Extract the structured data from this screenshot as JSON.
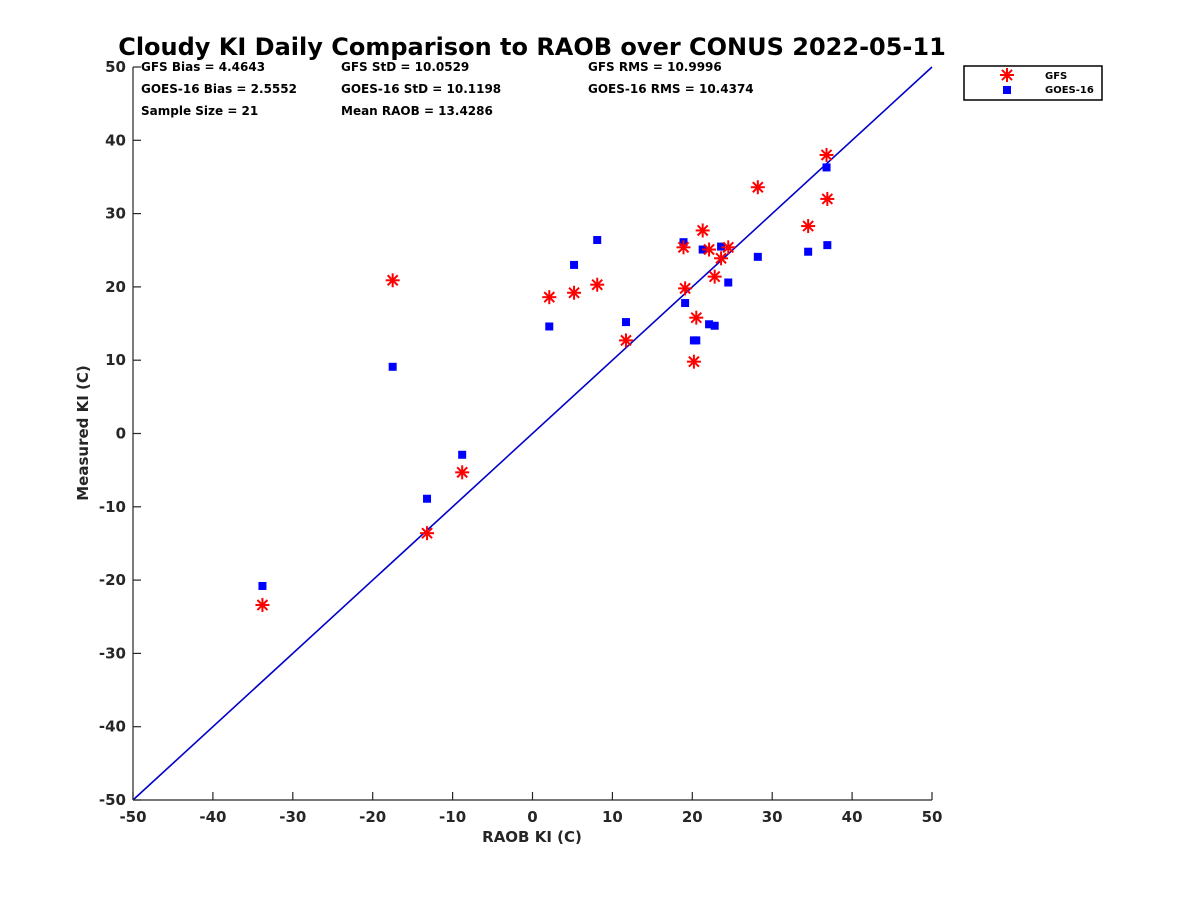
{
  "chart_data": {
    "type": "scatter",
    "title": "Cloudy KI Daily Comparison to RAOB over CONUS 2022-05-11",
    "xlabel": "RAOB KI (C)",
    "ylabel": "Measured KI (C)",
    "xlim": [
      -50,
      50
    ],
    "ylim": [
      -50,
      50
    ],
    "xticks": [
      "-50",
      "-40",
      "-30",
      "-20",
      "-10",
      "0",
      "10",
      "20",
      "30",
      "40",
      "50"
    ],
    "yticks": [
      "-50",
      "-40",
      "-30",
      "-20",
      "-10",
      "0",
      "10",
      "20",
      "30",
      "40",
      "50"
    ],
    "grid": false,
    "legend_position": "outside-top-right",
    "reference_line": {
      "type": "one-to-one",
      "color": "#0000cc"
    },
    "stats": [
      [
        "GFS Bias = 4.4643",
        "GFS StD = 10.0529",
        "GFS RMS = 10.9996"
      ],
      [
        "GOES-16 Bias = 2.5552",
        "GOES-16 StD = 10.1198",
        "GOES-16 RMS = 10.4374"
      ],
      [
        "Sample Size = 21",
        "Mean RAOB = 13.4286",
        ""
      ]
    ],
    "series": [
      {
        "name": "GFS",
        "marker": "asterisk",
        "color": "#ff0000",
        "points": [
          [
            -33.8,
            -23.4
          ],
          [
            -17.5,
            20.9
          ],
          [
            -13.2,
            -13.6
          ],
          [
            -8.8,
            -5.3
          ],
          [
            2.1,
            18.6
          ],
          [
            5.2,
            19.2
          ],
          [
            8.1,
            20.3
          ],
          [
            11.7,
            12.7
          ],
          [
            18.9,
            25.4
          ],
          [
            19.1,
            19.8
          ],
          [
            20.2,
            9.8
          ],
          [
            20.5,
            15.8
          ],
          [
            21.3,
            27.7
          ],
          [
            22.1,
            25.1
          ],
          [
            22.8,
            21.4
          ],
          [
            23.6,
            23.9
          ],
          [
            24.5,
            25.4
          ],
          [
            28.2,
            33.6
          ],
          [
            34.5,
            28.3
          ],
          [
            36.8,
            38.0
          ],
          [
            36.9,
            32.0
          ]
        ]
      },
      {
        "name": "GOES-16",
        "marker": "square",
        "color": "#0000ff",
        "points": [
          [
            -33.8,
            -20.8
          ],
          [
            -17.5,
            9.1
          ],
          [
            -13.2,
            -8.9
          ],
          [
            -8.8,
            -2.9
          ],
          [
            2.1,
            14.6
          ],
          [
            5.2,
            23.0
          ],
          [
            8.1,
            26.4
          ],
          [
            11.7,
            15.2
          ],
          [
            18.9,
            26.1
          ],
          [
            19.1,
            17.8
          ],
          [
            20.2,
            12.7
          ],
          [
            20.5,
            12.7
          ],
          [
            21.3,
            25.1
          ],
          [
            22.1,
            14.9
          ],
          [
            22.8,
            14.7
          ],
          [
            23.6,
            25.5
          ],
          [
            24.5,
            20.6
          ],
          [
            28.2,
            24.1
          ],
          [
            34.5,
            24.8
          ],
          [
            36.8,
            36.3
          ],
          [
            36.9,
            25.7
          ]
        ]
      }
    ]
  }
}
